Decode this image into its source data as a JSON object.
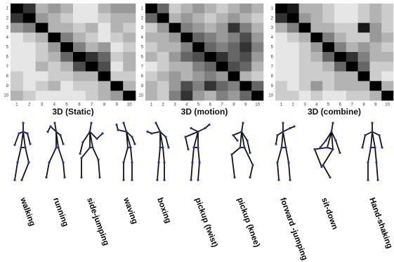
{
  "panels": [
    {
      "title": "3D (Static)",
      "matrix": [
        [
          1,
          0.8,
          0.3,
          0.4,
          0.3,
          0.1,
          0.1,
          0.3,
          0.4,
          0.4
        ],
        [
          0.8,
          1,
          0.4,
          0.3,
          0.2,
          0.1,
          0.1,
          0.2,
          0.3,
          0.3
        ],
        [
          0.4,
          0.5,
          1,
          0.3,
          0.3,
          0.2,
          0.3,
          0.1,
          0.3,
          0.2
        ],
        [
          0.1,
          0.2,
          0.3,
          1,
          0.5,
          0.3,
          0.2,
          0.1,
          0.2,
          0.3
        ],
        [
          0.1,
          0.1,
          0.2,
          0.4,
          1,
          0.5,
          0.3,
          0.4,
          0.1,
          0.2
        ],
        [
          0.1,
          0.1,
          0.2,
          0.3,
          0.6,
          1,
          0.8,
          0.6,
          0.2,
          0.3
        ],
        [
          0.1,
          0.1,
          0.3,
          0.2,
          0.3,
          0.7,
          1,
          0.7,
          0.1,
          0.3
        ],
        [
          0.2,
          0.1,
          0.1,
          0.2,
          0.2,
          0.3,
          0.3,
          1,
          0.2,
          0.2
        ],
        [
          0.2,
          0.1,
          0.2,
          0.3,
          0.1,
          0.2,
          0.2,
          0.3,
          1,
          0.3
        ],
        [
          0.3,
          0.2,
          0.1,
          0.1,
          0.1,
          0.1,
          0.2,
          0.3,
          0.4,
          1
        ]
      ]
    },
    {
      "title": "3D (motion)",
      "matrix": [
        [
          1,
          0.6,
          0.2,
          0.3,
          0.4,
          0.3,
          0.2,
          0.3,
          0.4,
          0.3
        ],
        [
          0.6,
          1,
          0.3,
          0.4,
          0.3,
          0.2,
          0.3,
          0.4,
          0.3,
          0.2
        ],
        [
          0.2,
          0.4,
          1,
          0.5,
          0.4,
          0.3,
          0.4,
          0.8,
          0.5,
          0.3
        ],
        [
          0.3,
          0.3,
          0.4,
          1,
          0.6,
          0.5,
          0.4,
          0.5,
          0.7,
          0.4
        ],
        [
          0.2,
          0.3,
          0.3,
          0.5,
          1,
          0.6,
          0.5,
          0.6,
          0.8,
          0.5
        ],
        [
          0.3,
          0.2,
          0.4,
          0.6,
          0.7,
          1,
          0.8,
          0.6,
          0.7,
          0.4
        ],
        [
          0.1,
          0.2,
          0.3,
          0.3,
          0.5,
          0.6,
          1,
          0.7,
          0.6,
          0.3
        ],
        [
          0.2,
          0.3,
          0.4,
          0.3,
          0.4,
          0.5,
          0.4,
          1,
          0.3,
          0.2
        ],
        [
          0.3,
          0.2,
          0.4,
          0.7,
          0.5,
          0.8,
          0.6,
          0.5,
          1,
          0.6
        ],
        [
          0.3,
          0.2,
          0.5,
          0.8,
          0.4,
          0.3,
          0.5,
          0.4,
          0.6,
          1
        ]
      ]
    },
    {
      "title": "3D (combine)",
      "matrix": [
        [
          1,
          0.9,
          0.3,
          0.3,
          0.2,
          0.1,
          0.1,
          0.2,
          0.3,
          0.2
        ],
        [
          0.8,
          1,
          0.4,
          0.3,
          0.2,
          0.1,
          0.1,
          0.2,
          0.3,
          0.2
        ],
        [
          0.3,
          0.5,
          1,
          0.3,
          0.3,
          0.2,
          0.2,
          0.9,
          0.4,
          0.2
        ],
        [
          0.1,
          0.2,
          0.3,
          1,
          0.5,
          0.3,
          0.2,
          0.2,
          0.4,
          0.3
        ],
        [
          0.1,
          0.1,
          0.2,
          0.4,
          1,
          0.5,
          0.3,
          0.4,
          0.3,
          0.2
        ],
        [
          0.1,
          0.1,
          0.2,
          0.3,
          0.6,
          1,
          0.8,
          0.5,
          0.3,
          0.3
        ],
        [
          0.1,
          0.1,
          0.2,
          0.2,
          0.3,
          0.6,
          1,
          0.6,
          0.2,
          0.2
        ],
        [
          0.1,
          0.1,
          0.2,
          0.2,
          0.2,
          0.3,
          0.3,
          1,
          0.2,
          0.1
        ],
        [
          0.2,
          0.1,
          0.2,
          0.4,
          0.2,
          0.3,
          0.3,
          0.3,
          1,
          0.3
        ],
        [
          0.2,
          0.2,
          0.1,
          0.2,
          0.1,
          0.1,
          0.2,
          0.2,
          0.3,
          1
        ]
      ]
    }
  ],
  "tick_labels": [
    1,
    2,
    3,
    4,
    5,
    6,
    7,
    8,
    9,
    10
  ],
  "actions": [
    "walking",
    "running",
    "side-jumping",
    "waving",
    "boxing",
    "pickup (twist)",
    "pickup (knee)",
    "forward -jumping",
    "sit-down",
    "Hand-shaking"
  ]
}
